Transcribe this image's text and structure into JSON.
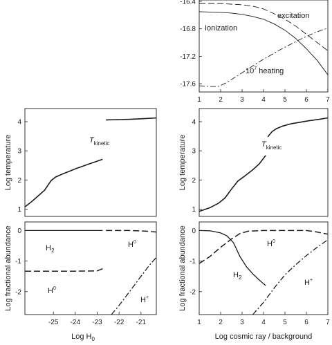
{
  "chart_data": [
    {
      "id": "heating_rates",
      "type": "line",
      "xlim": [
        1,
        7
      ],
      "ylim": [
        -17.72,
        -16.38
      ],
      "xticks": [
        "1",
        "2",
        "3",
        "4",
        "5",
        "6",
        "7"
      ],
      "yticks": [
        "-16.4",
        "-16.8",
        "-17.2",
        "-17.6"
      ],
      "xlabel": "",
      "ylabel": "",
      "grid": false,
      "series": [
        {
          "name": "excitation",
          "style": "dashed",
          "width": 0.9,
          "x": [
            1,
            2,
            2.5,
            3,
            3.5,
            4,
            4.5,
            5,
            5.5,
            6,
            6.5,
            7
          ],
          "y": [
            -16.43,
            -16.43,
            -16.44,
            -16.45,
            -16.47,
            -16.51,
            -16.58,
            -16.66,
            -16.76,
            -16.88,
            -17.0,
            -17.12
          ]
        },
        {
          "name": "Ionization",
          "style": "solid",
          "width": 0.9,
          "x": [
            1,
            2,
            2.5,
            3,
            3.5,
            4,
            4.5,
            5,
            5.5,
            6,
            6.5,
            7
          ],
          "y": [
            -16.55,
            -16.56,
            -16.57,
            -16.59,
            -16.62,
            -16.66,
            -16.73,
            -16.82,
            -16.94,
            -17.09,
            -17.26,
            -17.47
          ]
        },
        {
          "name": "heating",
          "style": "dashdot",
          "width": 0.9,
          "x": [
            1,
            1.5,
            1.9,
            2.3,
            2.8,
            3.3,
            3.8,
            4.3,
            4.8,
            5.3,
            5.8,
            6.3,
            6.7,
            7
          ],
          "y": [
            -17.63,
            -17.64,
            -17.64,
            -17.58,
            -17.48,
            -17.38,
            -17.28,
            -17.19,
            -17.1,
            -17.02,
            -16.94,
            -16.87,
            -16.82,
            -16.79
          ]
        }
      ]
    },
    {
      "id": "temperature_vs_H0",
      "type": "line",
      "xlim": [
        -26.3,
        -20.3
      ],
      "ylim": [
        0.75,
        4.45
      ],
      "xticks": [],
      "yticks": [
        "1",
        "2",
        "3",
        "4"
      ],
      "xlabel": "",
      "ylabel": "Log temperature",
      "grid": false,
      "series": [
        {
          "name": "T_kinetic_low",
          "style": "solid",
          "width": 1.6,
          "x": [
            -26.3,
            -26.0,
            -25.7,
            -25.4,
            -25.1,
            -24.9,
            -24.6,
            -24.3,
            -24.0,
            -23.7,
            -23.4,
            -23.1,
            -22.75
          ],
          "y": [
            1.08,
            1.25,
            1.45,
            1.65,
            1.98,
            2.1,
            2.2,
            2.29,
            2.38,
            2.46,
            2.54,
            2.62,
            2.71
          ]
        },
        {
          "name": "T_kinetic_high",
          "style": "solid",
          "width": 1.6,
          "x": [
            -22.6,
            -22.0,
            -21.5,
            -21.0,
            -20.5,
            -20.3
          ],
          "y": [
            4.06,
            4.07,
            4.08,
            4.1,
            4.12,
            4.13
          ]
        }
      ]
    },
    {
      "id": "temperature_vs_cr",
      "type": "line",
      "xlim": [
        1,
        7
      ],
      "ylim": [
        0.75,
        4.45
      ],
      "xticks": [],
      "yticks": [
        "1",
        "2",
        "3",
        "4"
      ],
      "xlabel": "",
      "ylabel": "Log temperature",
      "grid": false,
      "series": [
        {
          "name": "T_kinetic_low",
          "style": "solid",
          "width": 1.6,
          "x": [
            1,
            1.5,
            1.9,
            2.2,
            2.5,
            2.8,
            3.1,
            3.5,
            3.8,
            4.1
          ],
          "y": [
            0.92,
            1.05,
            1.2,
            1.38,
            1.68,
            1.96,
            2.12,
            2.35,
            2.55,
            2.84
          ]
        },
        {
          "name": "T_kinetic_high",
          "style": "solid",
          "width": 1.6,
          "x": [
            4.2,
            4.4,
            4.6,
            4.9,
            5.3,
            5.7,
            6.1,
            6.6,
            7
          ],
          "y": [
            3.48,
            3.66,
            3.76,
            3.85,
            3.93,
            3.98,
            4.03,
            4.08,
            4.13
          ]
        }
      ]
    },
    {
      "id": "abundance_vs_H0",
      "type": "line",
      "xlim": [
        -26.3,
        -20.3
      ],
      "ylim": [
        -2.75,
        0.28
      ],
      "xticks": [
        "-25",
        "-24",
        "-23",
        "-22",
        "-21"
      ],
      "yticks": [
        "0",
        "-1",
        "-2"
      ],
      "xlabel": "Log H0",
      "ylabel": "Log fractional abundance",
      "grid": false,
      "series": [
        {
          "name": "H2",
          "style": "solid",
          "width": 1.3,
          "x": [
            -26.3,
            -24.0,
            -22.75
          ],
          "y": [
            0.0,
            0.0,
            0.0
          ]
        },
        {
          "name": "H0_high",
          "style": "dashed",
          "width": 1.5,
          "x": [
            -22.6,
            -21.5,
            -20.8,
            -20.3
          ],
          "y": [
            0.0,
            0.0,
            -0.02,
            -0.05
          ]
        },
        {
          "name": "H0_low",
          "style": "dashed",
          "width": 1.5,
          "x": [
            -26.3,
            -24.0,
            -23.0,
            -22.75
          ],
          "y": [
            -1.33,
            -1.33,
            -1.32,
            -1.25
          ]
        },
        {
          "name": "H+",
          "style": "dashdot",
          "width": 1.3,
          "x": [
            -22.35,
            -22.0,
            -21.5,
            -21.0,
            -20.6,
            -20.3
          ],
          "y": [
            -2.75,
            -2.45,
            -1.98,
            -1.5,
            -1.12,
            -0.88
          ]
        }
      ]
    },
    {
      "id": "abundance_vs_cr",
      "type": "line",
      "xlim": [
        1,
        7
      ],
      "ylim": [
        -2.75,
        0.28
      ],
      "xticks": [
        "1",
        "2",
        "3",
        "4",
        "5",
        "6",
        "7"
      ],
      "yticks": [
        "0",
        "-1",
        "-2"
      ],
      "xlabel": "Log cosmic ray / background",
      "ylabel": "Log fractional abundance",
      "grid": false,
      "series": [
        {
          "name": "H2",
          "style": "solid",
          "width": 1.3,
          "x": [
            1,
            1.5,
            2.0,
            2.3,
            2.6,
            2.9,
            3.2,
            3.5,
            3.8,
            4.1
          ],
          "y": [
            0.0,
            -0.01,
            -0.08,
            -0.18,
            -0.4,
            -0.85,
            -1.18,
            -1.42,
            -1.62,
            -1.8
          ]
        },
        {
          "name": "H0",
          "style": "dashed",
          "width": 1.5,
          "x": [
            1,
            1.5,
            2.0,
            2.5,
            2.9,
            3.3,
            4.0,
            5.0,
            6.0,
            6.5,
            7
          ],
          "y": [
            -1.08,
            -0.85,
            -0.55,
            -0.28,
            -0.1,
            -0.02,
            0.0,
            0.0,
            0.0,
            -0.05,
            -0.12
          ]
        },
        {
          "name": "H+",
          "style": "dashdot",
          "width": 1.3,
          "x": [
            3.5,
            4.0,
            4.5,
            5.0,
            5.5,
            6.0,
            6.5,
            7
          ],
          "y": [
            -2.75,
            -2.35,
            -1.88,
            -1.45,
            -1.12,
            -0.82,
            -0.55,
            -0.3
          ]
        }
      ]
    }
  ],
  "annotations": {
    "excitation": "excitation",
    "ionization": "Ionization",
    "heating_coeff": "10",
    "heating_exp": "7",
    "heating_word": " heating",
    "t_main": "T",
    "t_sub": "kinetic",
    "h_main": "H",
    "h2_sub": "2",
    "h0_sup": "0",
    "hplus_sup": "+"
  }
}
